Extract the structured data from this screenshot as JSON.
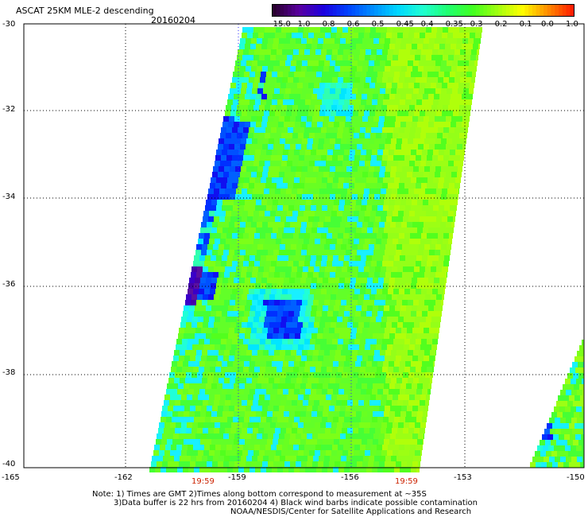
{
  "header": {
    "title": "ASCAT 25KM MLE-2 descending",
    "date": "20160204"
  },
  "colorbar": {
    "labels": [
      "-15.0",
      "-1.0",
      "-0.8",
      "-0.6",
      "-0.5",
      "-0.45",
      "-0.4",
      "-0.35",
      "-0.3",
      "-0.2",
      "-0.1",
      "0.0",
      "1.0"
    ],
    "colors": [
      "#2a0030",
      "#5a00a0",
      "#1a00e0",
      "#0044ff",
      "#0090ff",
      "#00d8ff",
      "#20ffd0",
      "#20ff70",
      "#40ff20",
      "#a0ff10",
      "#ffff00",
      "#ff9000",
      "#ff2000"
    ]
  },
  "map": {
    "lat_labels": [
      "-30",
      "-32",
      "-34",
      "-36",
      "-38",
      "-40"
    ],
    "lon_labels": [
      "-165",
      "-162",
      "-159",
      "-156",
      "-153",
      "-150"
    ],
    "time_labels": [
      "19:59",
      "19:59"
    ],
    "grid": true
  },
  "footer": {
    "line1": "Note: 1) Times are GMT 2)Times along bottom correspond to measurement at ~35S",
    "line2": "3)Data buffer is 22 hrs from 20160204 4) Black wind barbs indicate possible contamination",
    "line3": "NOAA/NESDIS/Center for Satellite Applications and Research"
  }
}
